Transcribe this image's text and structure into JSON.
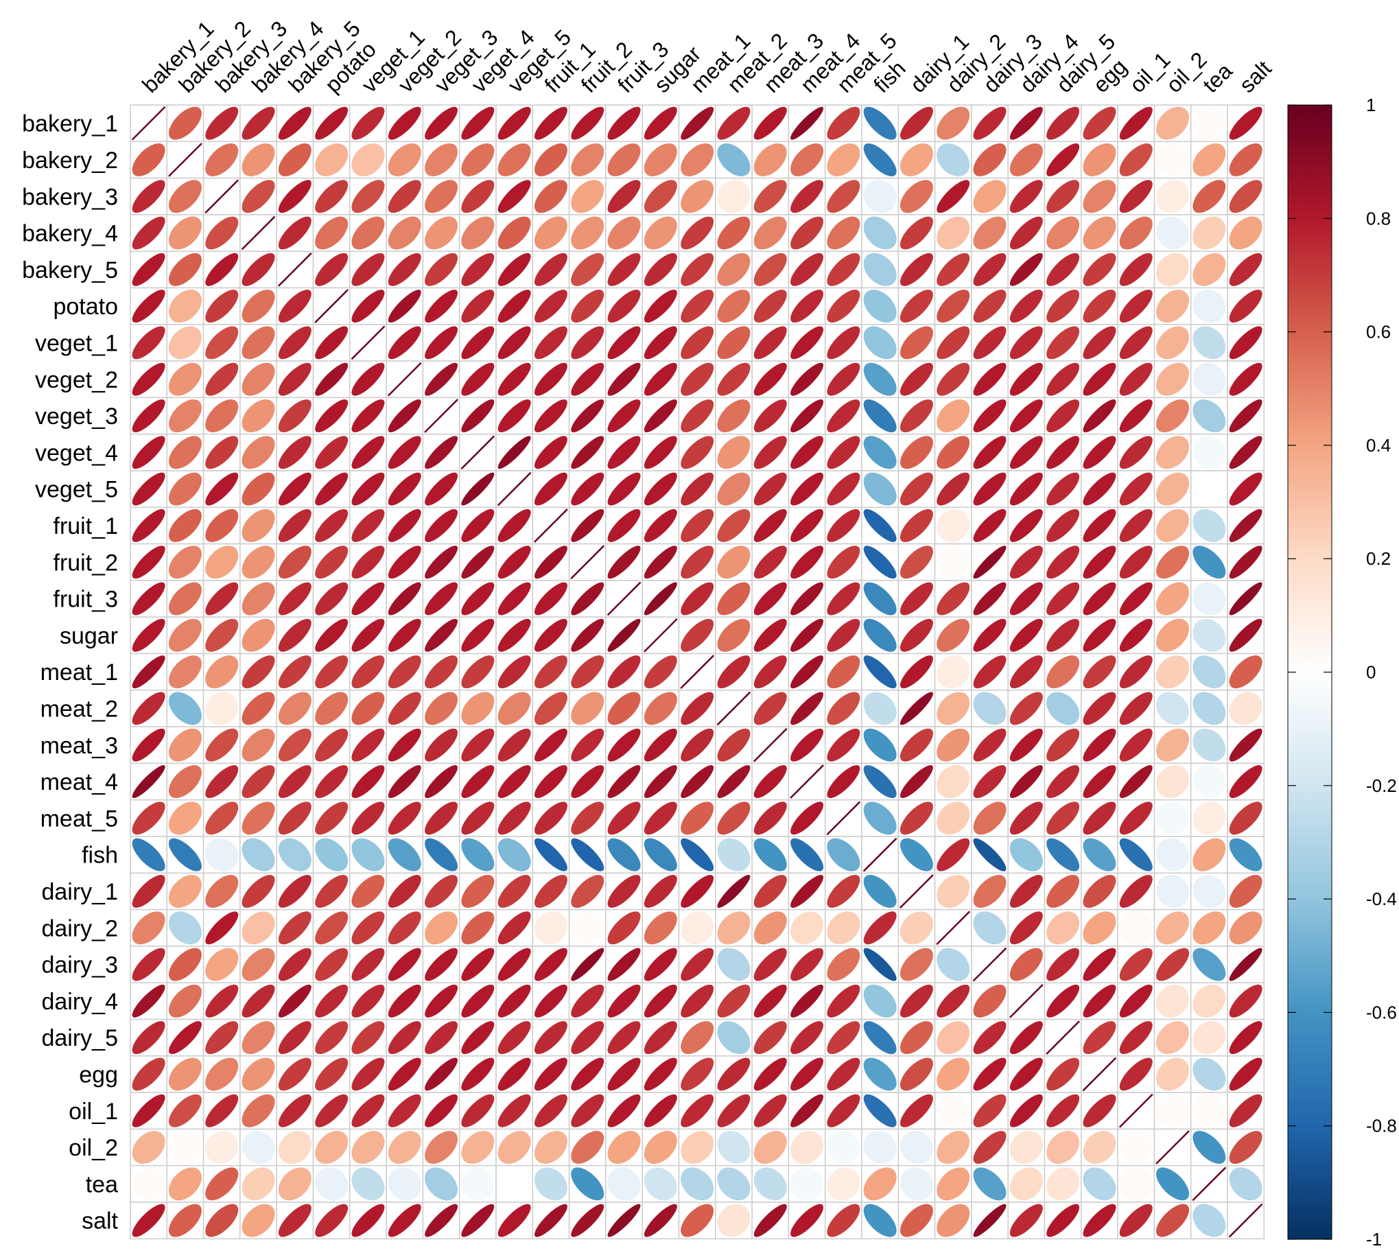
{
  "chart_data": {
    "type": "heatmap",
    "method": "ellipse",
    "title": "",
    "variables": [
      "bakery_1",
      "bakery_2",
      "bakery_3",
      "bakery_4",
      "bakery_5",
      "potato",
      "veget_1",
      "veget_2",
      "veget_3",
      "veget_4",
      "veget_5",
      "fruit_1",
      "fruit_2",
      "fruit_3",
      "sugar",
      "meat_1",
      "meat_2",
      "meat_3",
      "meat_4",
      "meat_5",
      "fish",
      "dairy_1",
      "dairy_2",
      "dairy_3",
      "dairy_4",
      "dairy_5",
      "egg",
      "oil_1",
      "oil_2",
      "tea",
      "salt"
    ],
    "matrix": [
      [
        1.0,
        0.6,
        0.75,
        0.75,
        0.8,
        0.8,
        0.75,
        0.8,
        0.8,
        0.8,
        0.8,
        0.8,
        0.8,
        0.8,
        0.8,
        0.85,
        0.75,
        0.8,
        0.9,
        0.7,
        -0.7,
        0.75,
        0.5,
        0.75,
        0.85,
        0.75,
        0.7,
        0.8,
        0.35,
        0.02,
        0.8
      ],
      [
        0.6,
        1.0,
        0.55,
        0.45,
        0.6,
        0.35,
        0.3,
        0.45,
        0.5,
        0.55,
        0.55,
        0.6,
        0.5,
        0.55,
        0.5,
        0.5,
        -0.45,
        0.45,
        0.55,
        0.4,
        -0.7,
        0.4,
        -0.3,
        0.6,
        0.55,
        0.8,
        0.45,
        0.65,
        0.02,
        0.4,
        0.6
      ],
      [
        0.75,
        0.55,
        1.0,
        0.65,
        0.8,
        0.7,
        0.65,
        0.7,
        0.55,
        0.7,
        0.8,
        0.6,
        0.4,
        0.75,
        0.65,
        0.45,
        0.1,
        0.65,
        0.75,
        0.65,
        -0.1,
        0.55,
        0.8,
        0.4,
        0.75,
        0.7,
        0.5,
        0.75,
        0.1,
        0.6,
        0.65
      ],
      [
        0.75,
        0.45,
        0.65,
        1.0,
        0.75,
        0.55,
        0.55,
        0.5,
        0.45,
        0.5,
        0.6,
        0.45,
        0.45,
        0.5,
        0.45,
        0.7,
        0.6,
        0.5,
        0.7,
        0.55,
        -0.35,
        0.7,
        0.3,
        0.5,
        0.75,
        0.5,
        0.45,
        0.55,
        -0.1,
        0.25,
        0.4
      ],
      [
        0.8,
        0.6,
        0.8,
        0.75,
        1.0,
        0.75,
        0.75,
        0.75,
        0.7,
        0.75,
        0.8,
        0.75,
        0.65,
        0.75,
        0.75,
        0.7,
        0.5,
        0.65,
        0.75,
        0.7,
        -0.35,
        0.75,
        0.7,
        0.75,
        0.85,
        0.75,
        0.7,
        0.75,
        0.2,
        0.35,
        0.75
      ],
      [
        0.8,
        0.35,
        0.7,
        0.55,
        0.75,
        1.0,
        0.8,
        0.85,
        0.8,
        0.75,
        0.8,
        0.75,
        0.7,
        0.75,
        0.8,
        0.7,
        0.55,
        0.7,
        0.75,
        0.7,
        -0.4,
        0.7,
        0.65,
        0.7,
        0.75,
        0.7,
        0.7,
        0.75,
        0.35,
        -0.1,
        0.75
      ],
      [
        0.75,
        0.3,
        0.65,
        0.55,
        0.75,
        0.8,
        1.0,
        0.8,
        0.8,
        0.8,
        0.8,
        0.75,
        0.75,
        0.8,
        0.8,
        0.7,
        0.6,
        0.75,
        0.8,
        0.75,
        -0.4,
        0.6,
        0.7,
        0.75,
        0.75,
        0.7,
        0.75,
        0.75,
        0.35,
        -0.25,
        0.8
      ],
      [
        0.8,
        0.45,
        0.7,
        0.5,
        0.75,
        0.85,
        0.8,
        1.0,
        0.85,
        0.8,
        0.8,
        0.8,
        0.8,
        0.85,
        0.8,
        0.7,
        0.7,
        0.8,
        0.85,
        0.75,
        -0.55,
        0.75,
        0.7,
        0.8,
        0.8,
        0.75,
        0.8,
        0.75,
        0.35,
        -0.1,
        0.8
      ],
      [
        0.8,
        0.5,
        0.55,
        0.45,
        0.7,
        0.8,
        0.8,
        0.85,
        1.0,
        0.85,
        0.8,
        0.8,
        0.85,
        0.8,
        0.85,
        0.7,
        0.55,
        0.75,
        0.85,
        0.75,
        -0.7,
        0.7,
        0.4,
        0.8,
        0.8,
        0.75,
        0.85,
        0.8,
        0.5,
        -0.35,
        0.85
      ],
      [
        0.8,
        0.55,
        0.7,
        0.5,
        0.75,
        0.75,
        0.8,
        0.8,
        0.85,
        1.0,
        0.9,
        0.8,
        0.85,
        0.8,
        0.8,
        0.7,
        0.45,
        0.75,
        0.8,
        0.75,
        -0.55,
        0.6,
        0.6,
        0.8,
        0.8,
        0.8,
        0.8,
        0.75,
        0.35,
        -0.05,
        0.85
      ],
      [
        0.8,
        0.55,
        0.8,
        0.6,
        0.8,
        0.8,
        0.8,
        0.8,
        0.8,
        0.9,
        1.0,
        0.8,
        0.8,
        0.8,
        0.8,
        0.75,
        0.5,
        0.75,
        0.8,
        0.75,
        -0.45,
        0.7,
        0.75,
        0.8,
        0.8,
        0.75,
        0.8,
        0.75,
        0.35,
        0.0,
        0.8
      ],
      [
        0.8,
        0.6,
        0.6,
        0.45,
        0.75,
        0.75,
        0.75,
        0.8,
        0.8,
        0.8,
        0.8,
        1.0,
        0.85,
        0.8,
        0.8,
        0.7,
        0.65,
        0.8,
        0.8,
        0.75,
        -0.8,
        0.7,
        0.1,
        0.8,
        0.8,
        0.75,
        0.8,
        0.75,
        0.35,
        -0.25,
        0.85
      ],
      [
        0.8,
        0.5,
        0.4,
        0.45,
        0.65,
        0.7,
        0.75,
        0.8,
        0.85,
        0.85,
        0.8,
        0.85,
        1.0,
        0.85,
        0.85,
        0.7,
        0.45,
        0.75,
        0.8,
        0.7,
        -0.8,
        0.65,
        0.02,
        0.9,
        0.75,
        0.75,
        0.8,
        0.75,
        0.55,
        -0.6,
        0.85
      ],
      [
        0.8,
        0.55,
        0.75,
        0.5,
        0.75,
        0.75,
        0.8,
        0.85,
        0.8,
        0.8,
        0.8,
        0.8,
        0.85,
        1.0,
        0.9,
        0.75,
        0.6,
        0.8,
        0.85,
        0.75,
        -0.65,
        0.75,
        0.7,
        0.85,
        0.8,
        0.75,
        0.8,
        0.8,
        0.4,
        -0.1,
        0.9
      ],
      [
        0.8,
        0.5,
        0.65,
        0.45,
        0.75,
        0.8,
        0.8,
        0.8,
        0.85,
        0.8,
        0.8,
        0.8,
        0.85,
        0.9,
        1.0,
        0.7,
        0.55,
        0.8,
        0.85,
        0.75,
        -0.65,
        0.75,
        0.55,
        0.8,
        0.8,
        0.75,
        0.8,
        0.8,
        0.4,
        -0.2,
        0.85
      ],
      [
        0.85,
        0.5,
        0.45,
        0.7,
        0.7,
        0.7,
        0.7,
        0.7,
        0.7,
        0.7,
        0.75,
        0.7,
        0.7,
        0.75,
        0.7,
        1.0,
        0.75,
        0.75,
        0.85,
        0.6,
        -0.8,
        0.8,
        0.1,
        0.75,
        0.75,
        0.55,
        0.7,
        0.75,
        0.25,
        -0.3,
        0.6
      ],
      [
        0.75,
        -0.45,
        0.1,
        0.6,
        0.5,
        0.55,
        0.6,
        0.7,
        0.55,
        0.45,
        0.5,
        0.65,
        0.45,
        0.6,
        0.55,
        0.75,
        1.0,
        0.7,
        0.85,
        0.65,
        -0.25,
        0.9,
        0.35,
        -0.3,
        0.7,
        -0.35,
        0.75,
        0.75,
        -0.2,
        -0.3,
        0.15
      ],
      [
        0.8,
        0.45,
        0.65,
        0.5,
        0.65,
        0.7,
        0.75,
        0.8,
        0.75,
        0.75,
        0.75,
        0.8,
        0.75,
        0.8,
        0.8,
        0.75,
        0.7,
        1.0,
        0.8,
        0.75,
        -0.6,
        0.7,
        0.45,
        0.75,
        0.8,
        0.7,
        0.8,
        0.75,
        0.35,
        -0.25,
        0.85
      ],
      [
        0.9,
        0.55,
        0.75,
        0.7,
        0.75,
        0.75,
        0.8,
        0.85,
        0.85,
        0.8,
        0.8,
        0.8,
        0.8,
        0.85,
        0.85,
        0.85,
        0.85,
        0.8,
        1.0,
        0.8,
        -0.75,
        0.85,
        0.2,
        0.75,
        0.85,
        0.75,
        0.8,
        0.85,
        0.15,
        -0.05,
        0.8
      ],
      [
        0.7,
        0.4,
        0.65,
        0.55,
        0.7,
        0.7,
        0.75,
        0.75,
        0.75,
        0.75,
        0.75,
        0.75,
        0.7,
        0.75,
        0.75,
        0.6,
        0.65,
        0.75,
        0.8,
        1.0,
        -0.5,
        0.7,
        0.25,
        0.55,
        0.75,
        0.7,
        0.75,
        0.75,
        -0.05,
        0.1,
        0.7
      ],
      [
        -0.7,
        -0.7,
        -0.1,
        -0.35,
        -0.35,
        -0.4,
        -0.4,
        -0.55,
        -0.7,
        -0.55,
        -0.45,
        -0.8,
        -0.8,
        -0.65,
        -0.65,
        -0.8,
        -0.25,
        -0.6,
        -0.75,
        -0.5,
        1.0,
        -0.6,
        0.75,
        -0.85,
        -0.4,
        -0.7,
        -0.55,
        -0.75,
        -0.1,
        0.4,
        -0.6
      ],
      [
        0.75,
        0.4,
        0.55,
        0.7,
        0.75,
        0.7,
        0.6,
        0.75,
        0.7,
        0.6,
        0.7,
        0.7,
        0.65,
        0.75,
        0.75,
        0.8,
        0.9,
        0.7,
        0.85,
        0.7,
        -0.6,
        1.0,
        0.25,
        0.55,
        0.75,
        0.6,
        0.65,
        0.75,
        -0.1,
        -0.1,
        0.6
      ],
      [
        0.5,
        -0.3,
        0.8,
        0.3,
        0.7,
        0.65,
        0.7,
        0.7,
        0.4,
        0.6,
        0.75,
        0.1,
        0.02,
        0.7,
        0.55,
        0.1,
        0.35,
        0.45,
        0.2,
        0.25,
        0.75,
        0.25,
        1.0,
        -0.3,
        0.75,
        0.3,
        0.4,
        0.02,
        0.35,
        0.4,
        0.45
      ],
      [
        0.75,
        0.6,
        0.4,
        0.5,
        0.75,
        0.7,
        0.75,
        0.8,
        0.8,
        0.8,
        0.8,
        0.8,
        0.9,
        0.85,
        0.8,
        0.75,
        -0.3,
        0.75,
        0.75,
        0.55,
        -0.85,
        0.55,
        -0.3,
        1.0,
        0.6,
        0.75,
        0.8,
        0.7,
        0.7,
        -0.55,
        0.9
      ],
      [
        0.85,
        0.55,
        0.75,
        0.75,
        0.85,
        0.75,
        0.75,
        0.8,
        0.8,
        0.8,
        0.8,
        0.8,
        0.75,
        0.8,
        0.8,
        0.75,
        0.7,
        0.8,
        0.85,
        0.75,
        -0.4,
        0.75,
        0.75,
        0.6,
        1.0,
        0.8,
        0.8,
        0.8,
        0.15,
        0.2,
        0.75
      ],
      [
        0.75,
        0.8,
        0.7,
        0.5,
        0.75,
        0.7,
        0.7,
        0.75,
        0.75,
        0.8,
        0.75,
        0.75,
        0.75,
        0.75,
        0.75,
        0.55,
        -0.35,
        0.7,
        0.75,
        0.7,
        -0.7,
        0.6,
        0.3,
        0.75,
        0.8,
        1.0,
        0.7,
        0.75,
        0.3,
        0.15,
        0.8
      ],
      [
        0.7,
        0.45,
        0.5,
        0.45,
        0.7,
        0.7,
        0.75,
        0.8,
        0.85,
        0.8,
        0.8,
        0.8,
        0.8,
        0.8,
        0.8,
        0.7,
        0.75,
        0.8,
        0.8,
        0.75,
        -0.55,
        0.65,
        0.4,
        0.8,
        0.8,
        0.7,
        1.0,
        0.75,
        0.25,
        -0.3,
        0.8
      ],
      [
        0.8,
        0.65,
        0.75,
        0.55,
        0.75,
        0.75,
        0.75,
        0.75,
        0.8,
        0.75,
        0.75,
        0.75,
        0.75,
        0.8,
        0.8,
        0.75,
        0.75,
        0.75,
        0.85,
        0.75,
        -0.75,
        0.75,
        0.02,
        0.7,
        0.8,
        0.75,
        0.75,
        1.0,
        0.02,
        0.02,
        0.75
      ],
      [
        0.35,
        0.02,
        0.1,
        -0.1,
        0.2,
        0.35,
        0.35,
        0.35,
        0.5,
        0.35,
        0.35,
        0.35,
        0.55,
        0.4,
        0.4,
        0.25,
        -0.2,
        0.35,
        0.15,
        -0.05,
        -0.1,
        -0.1,
        0.35,
        0.7,
        0.15,
        0.3,
        0.25,
        0.02,
        1.0,
        -0.6,
        0.65
      ],
      [
        0.02,
        0.4,
        0.6,
        0.25,
        0.35,
        -0.1,
        -0.25,
        -0.1,
        -0.35,
        -0.05,
        0.0,
        -0.25,
        -0.6,
        -0.1,
        -0.2,
        -0.3,
        -0.3,
        -0.25,
        -0.05,
        0.1,
        0.4,
        -0.1,
        0.4,
        -0.55,
        0.2,
        0.15,
        -0.3,
        0.02,
        -0.6,
        1.0,
        -0.3
      ],
      [
        0.8,
        0.6,
        0.65,
        0.4,
        0.75,
        0.75,
        0.8,
        0.8,
        0.85,
        0.85,
        0.8,
        0.85,
        0.85,
        0.9,
        0.85,
        0.6,
        0.15,
        0.85,
        0.8,
        0.7,
        -0.6,
        0.6,
        0.45,
        0.9,
        0.75,
        0.8,
        0.8,
        0.75,
        0.65,
        -0.3,
        1.0
      ]
    ],
    "colorbar": {
      "range": [
        -1,
        1
      ],
      "tick_labels": [
        "1",
        "0.8",
        "0.6",
        "0.4",
        "0.2",
        "0",
        "-0.2",
        "-0.4",
        "-0.6",
        "-0.8",
        "-1"
      ],
      "colors": [
        "#67001F",
        "#B2182B",
        "#D6604D",
        "#F4A582",
        "#FDDBC7",
        "#FFFFFF",
        "#D1E5F0",
        "#92C5DE",
        "#4393C3",
        "#2166AC",
        "#053061"
      ]
    },
    "grid": true,
    "legend": "right"
  }
}
